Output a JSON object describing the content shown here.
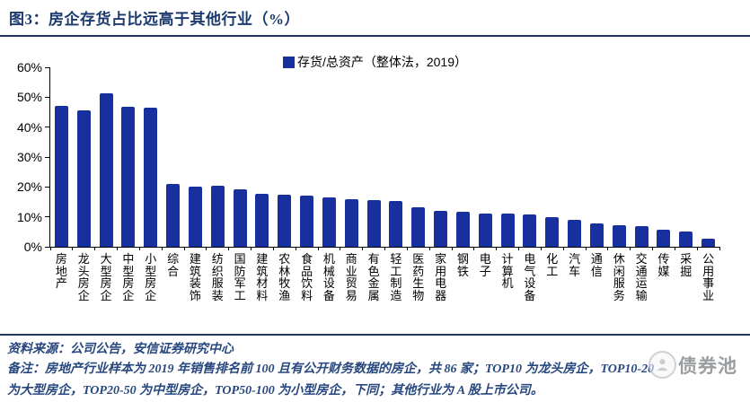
{
  "title": "图3：房企存货占比远高于其他行业（%）",
  "legend": "存货/总资产（整体法，2019）",
  "colors": {
    "bar": "#17309e",
    "accent_rule": "#1f3864",
    "footer_text": "#27477f",
    "axis": "#000000",
    "watermark_gray": "#8d9093"
  },
  "footer": {
    "source": "资料来源：公司公告，安信证券研究中心",
    "note_line1": "备注：房地产行业样本为 2019 年销售排名前 100 且有公开财务数据的房企，共 86 家；TOP10 为龙头房企，TOP10-20",
    "note_line2": "为大型房企，TOP20-50 为中型房企，TOP50-100 为小型房企，下同；其他行业为 A 股上市公司。"
  },
  "watermark": {
    "text": "债券池",
    "icon": "person-in-circle-logo-icon"
  },
  "chart_data": {
    "type": "bar",
    "title": "图3：房企存货占比远高于其他行业（%）",
    "legend": [
      "存货/总资产（整体法，2019）"
    ],
    "legend_position": "top-center",
    "grid": false,
    "ylim": [
      0,
      60
    ],
    "y_tick_step": 10,
    "y_ticks": [
      "0%",
      "10%",
      "20%",
      "30%",
      "40%",
      "50%",
      "60%"
    ],
    "xlabel": "",
    "ylabel": "",
    "categories": [
      "房地产",
      "龙头房企",
      "大型房企",
      "中型房企",
      "小型房企",
      "综合",
      "建筑装饰",
      "纺织服装",
      "国防军工",
      "建筑材料",
      "农林牧渔",
      "食品饮料",
      "机械设备",
      "商业贸易",
      "有色金属",
      "轻工制造",
      "医药生物",
      "家用电器",
      "钢铁",
      "电子",
      "计算机",
      "电气设备",
      "化工",
      "汽车",
      "通信",
      "休闲服务",
      "交通运输",
      "传媒",
      "采掘",
      "公用事业"
    ],
    "values": [
      47.0,
      45.5,
      51.2,
      46.8,
      46.5,
      21.0,
      20.2,
      20.3,
      19.3,
      17.8,
      17.3,
      17.0,
      16.6,
      16.0,
      15.6,
      15.4,
      13.3,
      12.0,
      11.6,
      11.0,
      11.0,
      10.7,
      10.0,
      9.0,
      7.9,
      7.3,
      6.8,
      5.8,
      5.2,
      2.8
    ]
  }
}
